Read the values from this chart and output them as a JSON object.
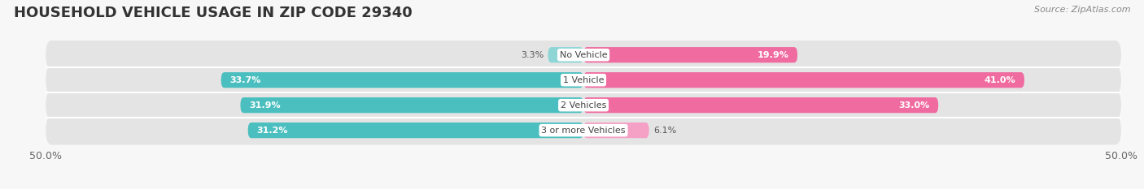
{
  "title": "HOUSEHOLD VEHICLE USAGE IN ZIP CODE 29340",
  "source": "Source: ZipAtlas.com",
  "categories": [
    "No Vehicle",
    "1 Vehicle",
    "2 Vehicles",
    "3 or more Vehicles"
  ],
  "owner_values": [
    3.3,
    33.7,
    31.9,
    31.2
  ],
  "renter_values": [
    19.9,
    41.0,
    33.0,
    6.1
  ],
  "owner_color": "#4BBFBF",
  "owner_color_light": "#8FD5D5",
  "renter_color": "#F06BA0",
  "renter_color_light": "#F5A0C5",
  "xlim": [
    -50,
    50
  ],
  "bar_height": 0.62,
  "background_color": "#f7f7f7",
  "bar_bg_color": "#e4e4e4",
  "title_fontsize": 13,
  "source_fontsize": 8,
  "label_fontsize": 8,
  "category_fontsize": 8,
  "tick_fontsize": 9,
  "legend_fontsize": 8.5
}
